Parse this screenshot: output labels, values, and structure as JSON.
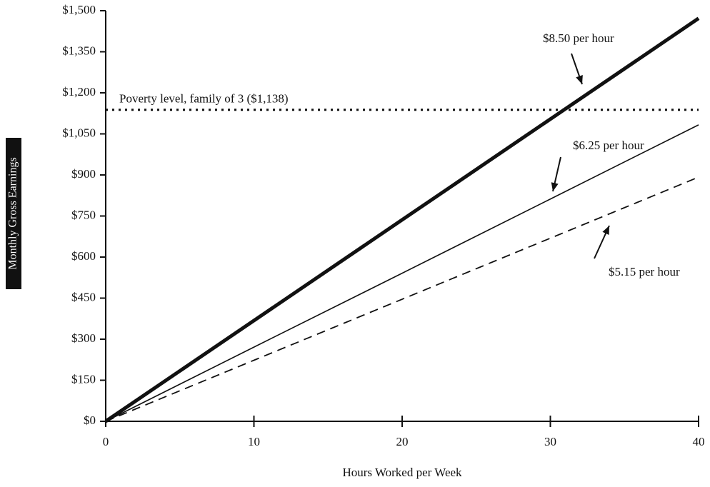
{
  "chart_data": {
    "type": "line",
    "y_label": "Monthly Gross Earnings",
    "x_label": "Hours Worked per Week",
    "x": [
      0,
      10,
      20,
      30,
      40
    ],
    "series": [
      {
        "name": "$8.50 per hour",
        "color": "#111111",
        "values": [
          0,
          368,
          736,
          1104,
          1472
        ]
      },
      {
        "name": "$6.25 per hour",
        "color": "#111111",
        "values": [
          0,
          271,
          541,
          812,
          1083
        ]
      },
      {
        "name": "$5.15 per hour",
        "color": "#111111",
        "values": [
          0,
          223,
          446,
          669,
          892
        ]
      }
    ],
    "reference_line": {
      "value": 1138,
      "label": "Poverty level, family of 3 ($1,138)"
    },
    "xlim": [
      0,
      40
    ],
    "xticks": [
      0,
      10,
      20,
      30,
      40
    ],
    "ylim": [
      0,
      1500
    ],
    "yticks": [
      {
        "value": 0,
        "label": "$0"
      },
      {
        "value": 150,
        "label": "$150"
      },
      {
        "value": 300,
        "label": "$300"
      },
      {
        "value": 450,
        "label": "$450"
      },
      {
        "value": 600,
        "label": "$600"
      },
      {
        "value": 750,
        "label": "$750"
      },
      {
        "value": 900,
        "label": "$900"
      },
      {
        "value": 1050,
        "label": "$1,050"
      },
      {
        "value": 1200,
        "label": "$1,200"
      },
      {
        "value": 1350,
        "label": "$1,350"
      },
      {
        "value": 1500,
        "label": "$1,500"
      }
    ],
    "grid": false
  }
}
